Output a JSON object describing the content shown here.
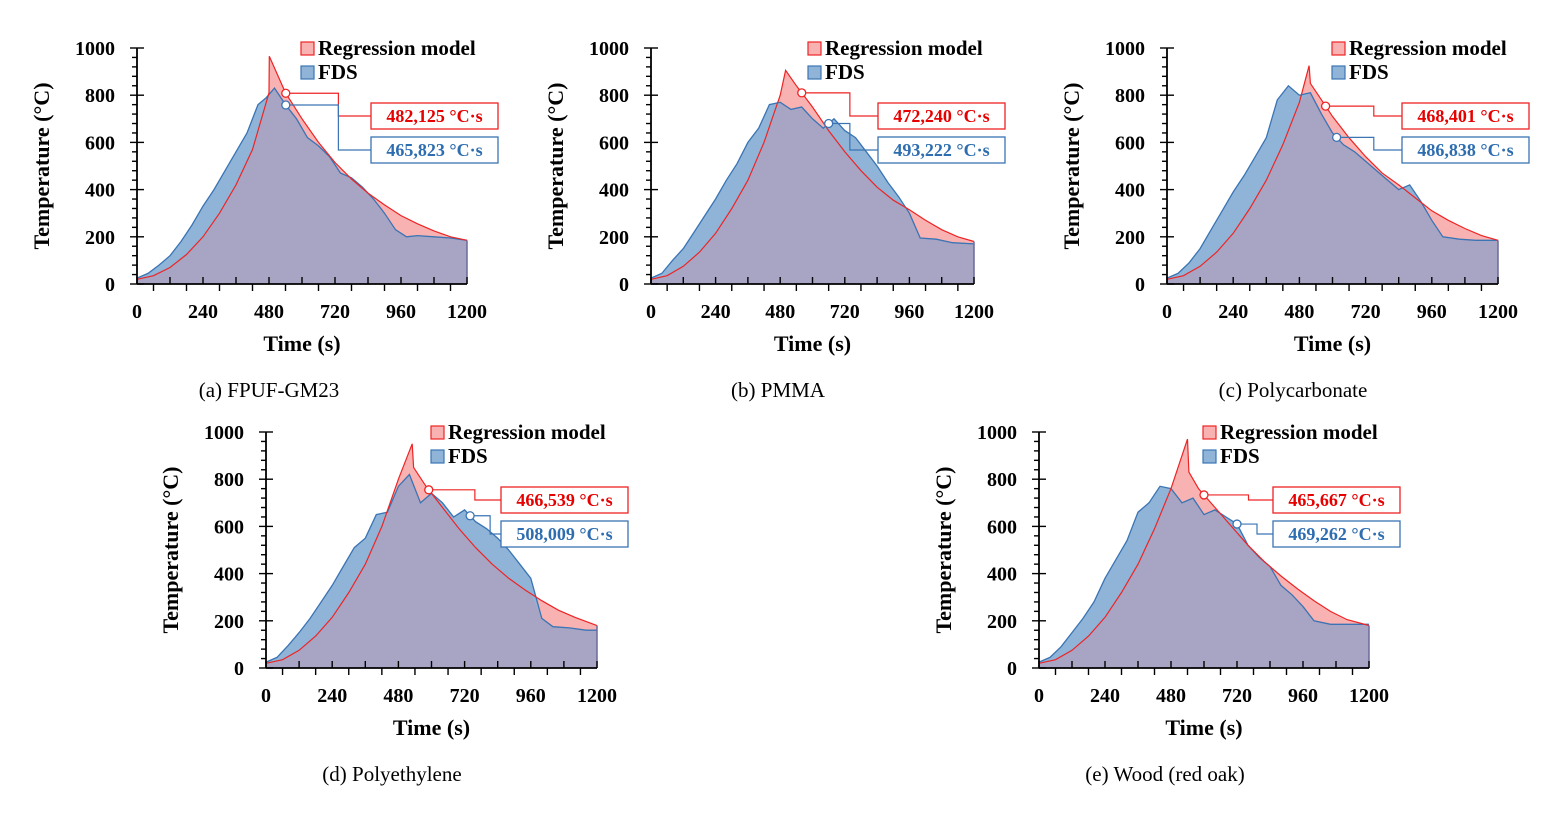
{
  "chart_data": [
    {
      "type": "area",
      "caption": "(a) FPUF-GM23",
      "xlabel": "Time (s)",
      "ylabel": "Temperature (°C)",
      "xlim": [
        0,
        1200
      ],
      "ylim": [
        0,
        1000
      ],
      "xticks": [
        "0",
        "240",
        "480",
        "720",
        "960",
        "1200"
      ],
      "yticks": [
        "0",
        "200",
        "400",
        "600",
        "800",
        "1000"
      ],
      "legend": [
        "Regression model",
        "FDS"
      ],
      "legend_position": "top-right",
      "annotations": {
        "regression": "482,125 °C·s",
        "fds": "465,823 °C·s"
      },
      "series": [
        {
          "name": "Regression model",
          "x": [
            0,
            60,
            120,
            180,
            240,
            300,
            360,
            420,
            480,
            481,
            540,
            600,
            660,
            720,
            780,
            840,
            900,
            960,
            1020,
            1080,
            1140,
            1200
          ],
          "values": [
            20,
            35,
            70,
            125,
            200,
            300,
            420,
            570,
            810,
            965,
            810,
            700,
            600,
            515,
            445,
            385,
            335,
            290,
            255,
            225,
            200,
            185
          ]
        },
        {
          "name": "FDS",
          "x": [
            0,
            40,
            80,
            120,
            160,
            200,
            240,
            280,
            320,
            360,
            400,
            440,
            470,
            500,
            540,
            580,
            620,
            660,
            700,
            740,
            780,
            820,
            860,
            900,
            940,
            980,
            1020,
            1080,
            1140,
            1200
          ],
          "values": [
            25,
            45,
            80,
            120,
            180,
            250,
            330,
            400,
            480,
            560,
            640,
            760,
            790,
            830,
            760,
            700,
            620,
            585,
            540,
            470,
            450,
            410,
            360,
            300,
            230,
            200,
            205,
            200,
            195,
            185
          ]
        }
      ]
    },
    {
      "type": "area",
      "caption": "(b) PMMA",
      "xlabel": "Time (s)",
      "ylabel": "Temperature (°C)",
      "xlim": [
        0,
        1200
      ],
      "ylim": [
        0,
        1000
      ],
      "xticks": [
        "0",
        "240",
        "480",
        "720",
        "960",
        "1200"
      ],
      "yticks": [
        "0",
        "200",
        "400",
        "600",
        "800",
        "1000"
      ],
      "legend": [
        "Regression model",
        "FDS"
      ],
      "legend_position": "top-right",
      "annotations": {
        "regression": "472,240 °C·s",
        "fds": "493,222 °C·s"
      },
      "series": [
        {
          "name": "Regression model",
          "x": [
            0,
            60,
            120,
            180,
            240,
            300,
            360,
            420,
            480,
            500,
            540,
            600,
            660,
            720,
            780,
            840,
            900,
            960,
            1020,
            1080,
            1140,
            1200
          ],
          "values": [
            20,
            35,
            75,
            135,
            215,
            320,
            440,
            600,
            800,
            905,
            840,
            750,
            650,
            560,
            480,
            410,
            355,
            315,
            270,
            230,
            200,
            180
          ]
        },
        {
          "name": "FDS",
          "x": [
            0,
            40,
            80,
            120,
            160,
            200,
            240,
            280,
            320,
            360,
            400,
            440,
            480,
            520,
            560,
            600,
            640,
            680,
            720,
            760,
            800,
            840,
            880,
            920,
            960,
            1000,
            1060,
            1120,
            1200
          ],
          "values": [
            25,
            45,
            100,
            150,
            220,
            290,
            360,
            440,
            510,
            600,
            660,
            760,
            770,
            740,
            750,
            700,
            660,
            700,
            650,
            620,
            560,
            500,
            430,
            370,
            300,
            195,
            190,
            175,
            170
          ]
        }
      ]
    },
    {
      "type": "area",
      "caption": "(c) Polycarbonate",
      "xlabel": "Time (s)",
      "ylabel": "Temperature (°C)",
      "xlim": [
        0,
        1200
      ],
      "ylim": [
        0,
        1000
      ],
      "xticks": [
        "0",
        "240",
        "480",
        "720",
        "960",
        "1200"
      ],
      "yticks": [
        "0",
        "200",
        "400",
        "600",
        "800",
        "1000"
      ],
      "legend": [
        "Regression model",
        "FDS"
      ],
      "legend_position": "top-right",
      "annotations": {
        "regression": "468,401 °C·s",
        "fds": "486,838 °C·s"
      },
      "series": [
        {
          "name": "Regression model",
          "x": [
            0,
            60,
            120,
            180,
            240,
            300,
            360,
            420,
            480,
            515,
            520,
            560,
            600,
            660,
            720,
            780,
            840,
            900,
            960,
            1020,
            1080,
            1140,
            1200
          ],
          "values": [
            20,
            35,
            75,
            135,
            215,
            320,
            440,
            590,
            770,
            925,
            850,
            780,
            710,
            620,
            540,
            470,
            420,
            365,
            310,
            270,
            235,
            205,
            185
          ]
        },
        {
          "name": "FDS",
          "x": [
            0,
            40,
            80,
            120,
            160,
            200,
            240,
            280,
            320,
            360,
            400,
            440,
            480,
            520,
            560,
            600,
            640,
            680,
            720,
            760,
            800,
            840,
            880,
            920,
            960,
            1000,
            1060,
            1120,
            1200
          ],
          "values": [
            25,
            45,
            90,
            150,
            230,
            310,
            390,
            460,
            540,
            620,
            780,
            840,
            800,
            810,
            720,
            640,
            590,
            560,
            520,
            480,
            440,
            400,
            420,
            350,
            270,
            200,
            190,
            185,
            185
          ]
        }
      ]
    },
    {
      "type": "area",
      "caption": "(d) Polyethylene",
      "xlabel": "Time (s)",
      "ylabel": "Temperature (°C)",
      "xlim": [
        0,
        1200
      ],
      "ylim": [
        0,
        1000
      ],
      "xticks": [
        "0",
        "240",
        "480",
        "720",
        "960",
        "1200"
      ],
      "yticks": [
        "0",
        "200",
        "400",
        "600",
        "800",
        "1000"
      ],
      "legend": [
        "Regression model",
        "FDS"
      ],
      "legend_position": "top-right",
      "annotations": {
        "regression": "466,539 °C·s",
        "fds": "508,009 °C·s"
      },
      "series": [
        {
          "name": "Regression model",
          "x": [
            0,
            60,
            120,
            180,
            240,
            300,
            360,
            420,
            480,
            530,
            535,
            580,
            640,
            700,
            760,
            820,
            880,
            940,
            1000,
            1060,
            1120,
            1200
          ],
          "values": [
            20,
            35,
            75,
            135,
            215,
            320,
            440,
            600,
            800,
            950,
            850,
            770,
            680,
            590,
            510,
            440,
            380,
            330,
            285,
            245,
            215,
            180
          ]
        },
        {
          "name": "FDS",
          "x": [
            0,
            40,
            80,
            120,
            160,
            200,
            240,
            280,
            320,
            360,
            400,
            440,
            480,
            520,
            560,
            600,
            640,
            680,
            720,
            760,
            800,
            840,
            880,
            920,
            960,
            1000,
            1040,
            1100,
            1160,
            1200
          ],
          "values": [
            25,
            45,
            95,
            150,
            210,
            280,
            350,
            430,
            510,
            550,
            650,
            660,
            770,
            820,
            700,
            740,
            700,
            640,
            670,
            620,
            590,
            550,
            500,
            440,
            380,
            210,
            175,
            170,
            160,
            160
          ]
        }
      ]
    },
    {
      "type": "area",
      "caption": "(e) Wood (red oak)",
      "xlabel": "Time (s)",
      "ylabel": "Temperature (°C)",
      "xlim": [
        0,
        1200
      ],
      "ylim": [
        0,
        1000
      ],
      "xticks": [
        "0",
        "240",
        "480",
        "720",
        "960",
        "1200"
      ],
      "yticks": [
        "0",
        "200",
        "400",
        "600",
        "800",
        "1000"
      ],
      "legend": [
        "Regression model",
        "FDS"
      ],
      "legend_position": "top-right",
      "annotations": {
        "regression": "465,667 °C·s",
        "fds": "469,262 °C·s"
      },
      "series": [
        {
          "name": "Regression model",
          "x": [
            0,
            60,
            120,
            180,
            240,
            300,
            360,
            420,
            480,
            540,
            545,
            580,
            640,
            700,
            760,
            820,
            880,
            940,
            1000,
            1060,
            1120,
            1200
          ],
          "values": [
            20,
            35,
            75,
            135,
            215,
            320,
            440,
            590,
            760,
            970,
            830,
            760,
            680,
            600,
            520,
            450,
            390,
            335,
            285,
            240,
            205,
            180
          ]
        },
        {
          "name": "FDS",
          "x": [
            0,
            40,
            80,
            120,
            160,
            200,
            240,
            280,
            320,
            360,
            400,
            440,
            480,
            520,
            560,
            600,
            640,
            680,
            720,
            760,
            800,
            840,
            880,
            920,
            960,
            1000,
            1060,
            1120,
            1200
          ],
          "values": [
            25,
            45,
            90,
            150,
            210,
            280,
            380,
            460,
            540,
            660,
            700,
            770,
            760,
            700,
            720,
            650,
            670,
            640,
            610,
            520,
            470,
            430,
            350,
            310,
            260,
            200,
            185,
            185,
            185
          ]
        }
      ]
    }
  ],
  "colors": {
    "regression_line": "#ee2424",
    "regression_fill": "#f9b2b2",
    "fds_line": "#3a74b4",
    "fds_fill": "#8fb4d8",
    "overlap_fill": "#a8a4c4",
    "regression_text": "#e60000",
    "fds_text": "#2e6db0"
  }
}
